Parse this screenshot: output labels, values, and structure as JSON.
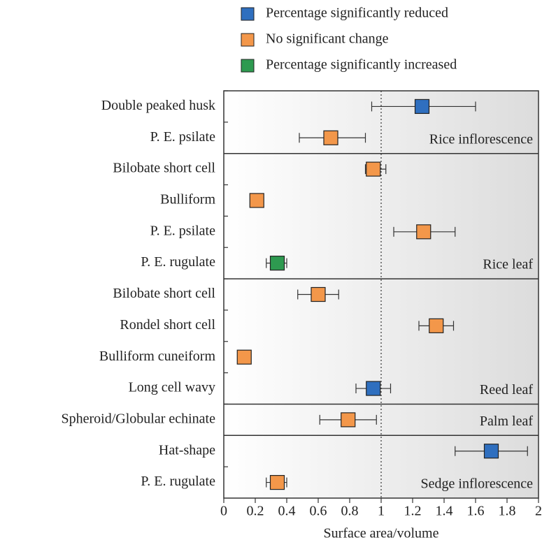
{
  "chart_data": {
    "type": "errorbar",
    "xlabel": "Surface area/volume",
    "xlim": [
      0,
      2
    ],
    "xticks": [
      0,
      0.2,
      0.4,
      0.6,
      0.8,
      1,
      1.2,
      1.4,
      1.6,
      1.8,
      2
    ],
    "reference_line": 1,
    "series": [
      {
        "name": "Percentage significantly reduced",
        "color": "#2f6fbf"
      },
      {
        "name": "No significant change",
        "color": "#f3974a"
      },
      {
        "name": "Percentage significantly increased",
        "color": "#2e9a50"
      }
    ],
    "groups": [
      {
        "name": "Rice inflorescence",
        "rows": [
          {
            "label": "Double peaked husk",
            "value": 1.26,
            "low": 0.94,
            "high": 1.6,
            "series": 0
          },
          {
            "label": "P. E. psilate",
            "value": 0.68,
            "low": 0.48,
            "high": 0.9,
            "series": 1
          }
        ]
      },
      {
        "name": "Rice leaf",
        "rows": [
          {
            "label": "Bilobate short cell",
            "value": 0.95,
            "low": 0.9,
            "high": 1.03,
            "series": 1
          },
          {
            "label": "Bulliform",
            "value": 0.21,
            "low": 0.18,
            "high": 0.25,
            "series": 1
          },
          {
            "label": "P. E. psilate",
            "value": 1.27,
            "low": 1.08,
            "high": 1.47,
            "series": 1
          },
          {
            "label": "P. E. rugulate",
            "value": 0.34,
            "low": 0.27,
            "high": 0.4,
            "series": 2
          }
        ]
      },
      {
        "name": "Reed leaf",
        "rows": [
          {
            "label": "Bilobate short cell",
            "value": 0.6,
            "low": 0.47,
            "high": 0.73,
            "series": 1
          },
          {
            "label": "Rondel short cell",
            "value": 1.35,
            "low": 1.24,
            "high": 1.46,
            "series": 1
          },
          {
            "label": "Bulliform cuneiform",
            "value": 0.13,
            "low": 0.1,
            "high": 0.17,
            "series": 1
          },
          {
            "label": "Long cell wavy",
            "value": 0.95,
            "low": 0.84,
            "high": 1.06,
            "series": 0
          }
        ]
      },
      {
        "name": "Palm leaf",
        "rows": [
          {
            "label": "Spheroid/Globular echinate",
            "value": 0.79,
            "low": 0.61,
            "high": 0.97,
            "series": 1
          }
        ]
      },
      {
        "name": "Sedge inflorescence",
        "rows": [
          {
            "label": "Hat-shape",
            "value": 1.7,
            "low": 1.47,
            "high": 1.93,
            "series": 0
          },
          {
            "label": "P. E. rugulate",
            "value": 0.34,
            "low": 0.27,
            "high": 0.4,
            "series": 1
          }
        ]
      }
    ]
  }
}
